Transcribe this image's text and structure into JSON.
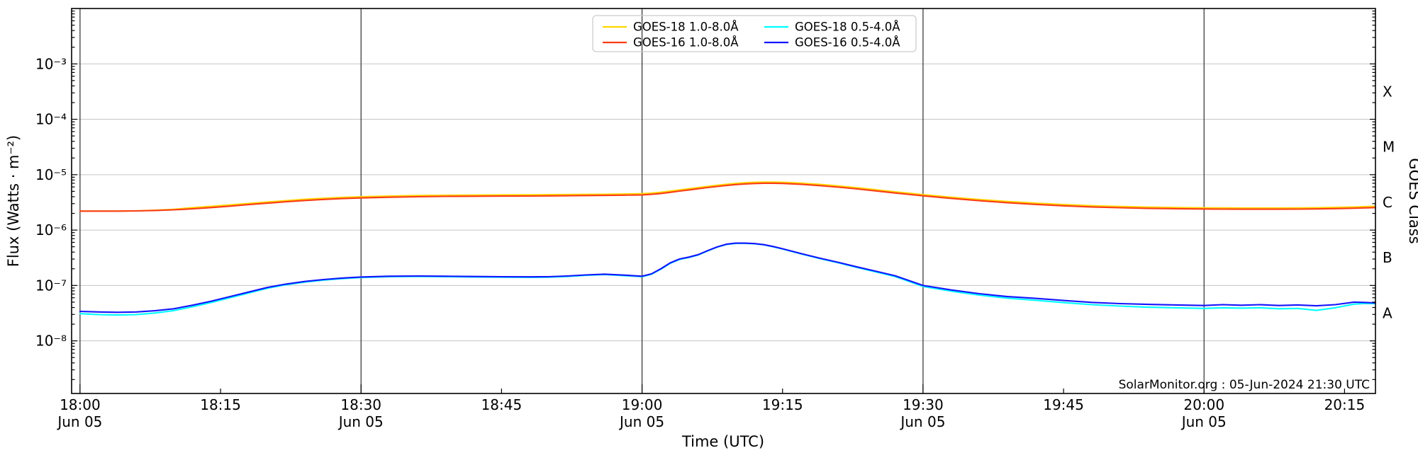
{
  "annotation": "SolarMonitor.org : 05-Jun-2024 21:30 UTC",
  "styles": {
    "background": "#ffffff",
    "h_grid_color": "#c6c6c6",
    "v_grid_color": "#2e2e2e",
    "spine_color": "#000000",
    "legend_border_color": "#cccccc"
  },
  "axes": {
    "x_label": "Time (UTC)",
    "y_left_label": "Flux (Watts · m⁻²)",
    "y_right_label": "GOES Class",
    "x_major_ticks": [
      {
        "t": 0,
        "time": "18:00",
        "date": "Jun 05"
      },
      {
        "t": 30,
        "time": "18:30",
        "date": "Jun 05"
      },
      {
        "t": 60,
        "time": "19:00",
        "date": "Jun 05"
      },
      {
        "t": 90,
        "time": "19:30",
        "date": "Jun 05"
      },
      {
        "t": 120,
        "time": "20:00",
        "date": "Jun 05"
      }
    ],
    "x_minor_ticks": [
      {
        "t": 15,
        "time": "18:15"
      },
      {
        "t": 45,
        "time": "18:45"
      },
      {
        "t": 75,
        "time": "19:15"
      },
      {
        "t": 105,
        "time": "19:45"
      },
      {
        "t": 135,
        "time": "20:15"
      }
    ],
    "y_ticks": [
      {
        "log": -3,
        "label": "10⁻³"
      },
      {
        "log": -4,
        "label": "10⁻⁴"
      },
      {
        "log": -5,
        "label": "10⁻⁵"
      },
      {
        "log": -6,
        "label": "10⁻⁶"
      },
      {
        "log": -7,
        "label": "10⁻⁷"
      },
      {
        "log": -8,
        "label": "10⁻⁸"
      }
    ],
    "goes_classes": [
      {
        "label": "X",
        "log": -3.5
      },
      {
        "label": "M",
        "log": -4.5
      },
      {
        "label": "C",
        "log": -5.5
      },
      {
        "label": "B",
        "log": -6.5
      },
      {
        "label": "A",
        "log": -7.5
      }
    ]
  },
  "legend": {
    "columns": 2,
    "entries": [
      {
        "label": "GOES-18 1.0-8.0Å",
        "color": "#ffd600"
      },
      {
        "label": "GOES-16 1.0-8.0Å",
        "color": "#fa3c19"
      },
      {
        "label": "GOES-18 0.5-4.0Å",
        "color": "#00ffff"
      },
      {
        "label": "GOES-16 0.5-4.0Å",
        "color": "#1414ff"
      }
    ]
  },
  "chart_data": {
    "type": "line",
    "title": "",
    "xlabel": "Time (UTC)",
    "ylabel": "Flux (Watts · m⁻²)",
    "x_unit": "minutes after 18:00 UTC on 05-Jun-2024",
    "x_range_minutes": [
      -0.9,
      138.3
    ],
    "y_log_range": [
      -8.95,
      -2
    ],
    "grid": true,
    "legend_position": "upper center",
    "x_minutes": [
      0,
      2,
      4,
      6,
      8,
      10,
      12,
      14,
      16,
      18,
      20,
      22,
      24,
      26,
      28,
      30,
      33,
      36,
      39,
      42,
      45,
      48,
      50,
      52,
      54,
      56,
      58,
      60,
      61,
      62,
      63,
      64,
      65,
      66,
      67,
      68,
      69,
      70,
      71,
      72,
      73,
      74,
      75,
      77,
      79,
      81,
      83,
      85,
      87,
      90,
      93,
      96,
      99,
      102,
      105,
      108,
      111,
      114,
      117,
      120,
      122,
      124,
      126,
      128,
      130,
      132,
      134,
      136,
      137,
      138.3
    ],
    "series": [
      {
        "name": "GOES-18 1.0-8.0Å",
        "color": "#ffd600",
        "values": [
          2.2e-06,
          2.2e-06,
          2.2e-06,
          2.22e-06,
          2.28e-06,
          2.37e-06,
          2.54e-06,
          2.68e-06,
          2.84e-06,
          3.02e-06,
          3.21e-06,
          3.4e-06,
          3.59e-06,
          3.75e-06,
          3.89e-06,
          3.99e-06,
          4.12e-06,
          4.2e-06,
          4.25e-06,
          4.28e-06,
          4.31e-06,
          4.33e-06,
          4.35e-06,
          4.38e-06,
          4.41e-06,
          4.43e-06,
          4.47e-06,
          4.54e-06,
          4.64e-06,
          4.81e-06,
          5.04e-06,
          5.3e-06,
          5.57e-06,
          5.86e-06,
          6.14e-06,
          6.43e-06,
          6.7e-06,
          6.95e-06,
          7.14e-06,
          7.28e-06,
          7.35e-06,
          7.35e-06,
          7.3e-06,
          7.04e-06,
          6.67e-06,
          6.25e-06,
          5.8e-06,
          5.33e-06,
          4.9e-06,
          4.36e-06,
          3.92e-06,
          3.56e-06,
          3.28e-06,
          3.06e-06,
          2.88e-06,
          2.75e-06,
          2.66e-06,
          2.59e-06,
          2.55e-06,
          2.52e-06,
          2.51e-06,
          2.5e-06,
          2.5e-06,
          2.5e-06,
          2.51e-06,
          2.53e-06,
          2.56e-06,
          2.61e-06,
          2.64e-06,
          2.68e-06
        ]
      },
      {
        "name": "GOES-16 1.0-8.0Å",
        "color": "#fa3c19",
        "values": [
          2.2e-06,
          2.2e-06,
          2.2e-06,
          2.22e-06,
          2.26e-06,
          2.32e-06,
          2.42e-06,
          2.55e-06,
          2.7e-06,
          2.88e-06,
          3.06e-06,
          3.24e-06,
          3.42e-06,
          3.57e-06,
          3.7e-06,
          3.8e-06,
          3.92e-06,
          4e-06,
          4.05e-06,
          4.08e-06,
          4.1e-06,
          4.12e-06,
          4.14e-06,
          4.17e-06,
          4.2e-06,
          4.22e-06,
          4.26e-06,
          4.32e-06,
          4.42e-06,
          4.58e-06,
          4.8e-06,
          5.05e-06,
          5.3e-06,
          5.58e-06,
          5.85e-06,
          6.12e-06,
          6.38e-06,
          6.62e-06,
          6.8e-06,
          6.93e-06,
          7e-06,
          7e-06,
          6.95e-06,
          6.7e-06,
          6.35e-06,
          5.95e-06,
          5.52e-06,
          5.08e-06,
          4.67e-06,
          4.15e-06,
          3.73e-06,
          3.39e-06,
          3.12e-06,
          2.91e-06,
          2.74e-06,
          2.62e-06,
          2.53e-06,
          2.47e-06,
          2.43e-06,
          2.4e-06,
          2.39e-06,
          2.38e-06,
          2.38e-06,
          2.38e-06,
          2.39e-06,
          2.41e-06,
          2.44e-06,
          2.48e-06,
          2.51e-06,
          2.55e-06
        ]
      },
      {
        "name": "GOES-18 0.5-4.0Å",
        "color": "#00ffff",
        "values": [
          3.1e-08,
          2.98e-08,
          2.92e-08,
          2.98e-08,
          3.18e-08,
          3.52e-08,
          4.12e-08,
          4.92e-08,
          6e-08,
          7.3e-08,
          8.9e-08,
          1.03e-07,
          1.15e-07,
          1.25e-07,
          1.33e-07,
          1.39e-07,
          1.44e-07,
          1.45e-07,
          1.44e-07,
          1.42e-07,
          1.41e-07,
          1.4e-07,
          1.41e-07,
          1.45e-07,
          1.52e-07,
          1.57e-07,
          1.51e-07,
          1.44e-07,
          1.59e-07,
          1.96e-07,
          2.5e-07,
          2.95e-07,
          3.2e-07,
          3.55e-07,
          4.2e-07,
          4.9e-07,
          5.5e-07,
          5.75e-07,
          5.75e-07,
          5.65e-07,
          5.4e-07,
          5e-07,
          4.55e-07,
          3.7e-07,
          3.05e-07,
          2.55e-07,
          2.1e-07,
          1.75e-07,
          1.45e-07,
          9.6e-08,
          7.9e-08,
          6.7e-08,
          5.9e-08,
          5.4e-08,
          4.9e-08,
          4.5e-08,
          4.25e-08,
          4.05e-08,
          3.95e-08,
          3.85e-08,
          3.95e-08,
          3.9e-08,
          3.95e-08,
          3.8e-08,
          3.85e-08,
          3.55e-08,
          3.95e-08,
          4.6e-08,
          4.7e-08,
          4.7e-08
        ]
      },
      {
        "name": "GOES-16 0.5-4.0Å",
        "color": "#1414ff",
        "values": [
          3.4e-08,
          3.32e-08,
          3.28e-08,
          3.32e-08,
          3.5e-08,
          3.8e-08,
          4.4e-08,
          5.2e-08,
          6.3e-08,
          7.6e-08,
          9.2e-08,
          1.06e-07,
          1.18e-07,
          1.28e-07,
          1.36e-07,
          1.42e-07,
          1.47e-07,
          1.48e-07,
          1.47e-07,
          1.45e-07,
          1.44e-07,
          1.43e-07,
          1.44e-07,
          1.48e-07,
          1.55e-07,
          1.6e-07,
          1.54e-07,
          1.47e-07,
          1.62e-07,
          2e-07,
          2.55e-07,
          3e-07,
          3.25e-07,
          3.6e-07,
          4.25e-07,
          4.95e-07,
          5.55e-07,
          5.8e-07,
          5.8e-07,
          5.7e-07,
          5.45e-07,
          5.05e-07,
          4.6e-07,
          3.75e-07,
          3.1e-07,
          2.6e-07,
          2.15e-07,
          1.8e-07,
          1.5e-07,
          1e-07,
          8.3e-08,
          7.1e-08,
          6.3e-08,
          5.85e-08,
          5.35e-08,
          4.95e-08,
          4.7e-08,
          4.55e-08,
          4.45e-08,
          4.35e-08,
          4.5e-08,
          4.4e-08,
          4.5e-08,
          4.35e-08,
          4.45e-08,
          4.3e-08,
          4.5e-08,
          5e-08,
          4.95e-08,
          4.85e-08
        ]
      }
    ]
  }
}
